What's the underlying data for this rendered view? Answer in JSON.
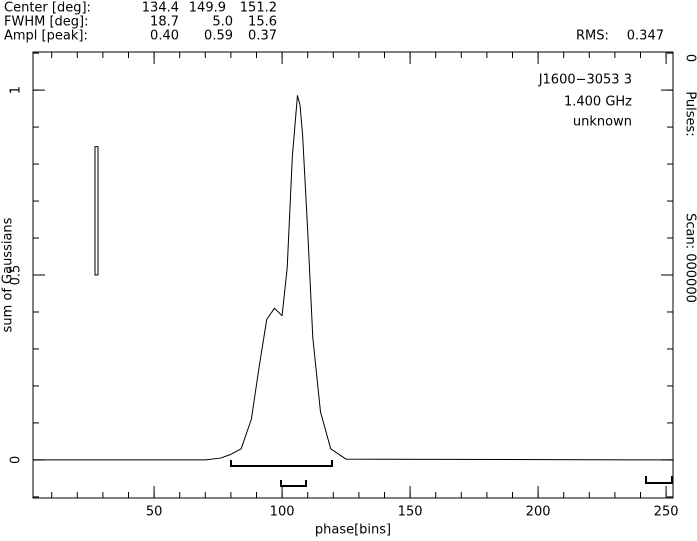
{
  "chart_data": {
    "type": "line",
    "title": "J1600−3053 3",
    "subtitles": [
      "1.400 GHz",
      "unknown"
    ],
    "header": {
      "rows": [
        {
          "label": "Center [deg]:",
          "values": [
            "134.4",
            "149.9",
            "151.2"
          ]
        },
        {
          "label": "FWHM [deg]:",
          "values": [
            "18.7",
            "5.0",
            "15.6"
          ]
        },
        {
          "label": "Ampl [peak]:",
          "values": [
            "0.40",
            "0.59",
            "0.37"
          ]
        }
      ],
      "rms_label": "RMS:",
      "rms": 0.347
    },
    "side_text": [
      "Scan: 000000",
      "Pulses:",
      "0"
    ],
    "x_label": "phase[bins]",
    "y_label": "sum of Gaussians",
    "x": [
      3,
      70,
      76,
      80,
      84,
      88,
      91,
      94,
      97,
      100,
      102,
      104,
      106,
      107,
      108,
      110,
      112,
      115,
      119,
      125,
      253
    ],
    "series": [
      {
        "color": "#000000",
        "values": [
          0,
          0,
          0.005,
          0.015,
          0.03,
          0.11,
          0.25,
          0.38,
          0.41,
          0.39,
          0.52,
          0.82,
          0.985,
          0.96,
          0.88,
          0.62,
          0.33,
          0.13,
          0.03,
          0.002,
          0
        ]
      }
    ],
    "xlim": [
      2.7,
      252.7
    ],
    "xticks": [
      50,
      100,
      150,
      200,
      250
    ],
    "ylim": [
      -0.103,
      1.103
    ],
    "yticks": [
      0,
      0.5,
      1
    ]
  }
}
